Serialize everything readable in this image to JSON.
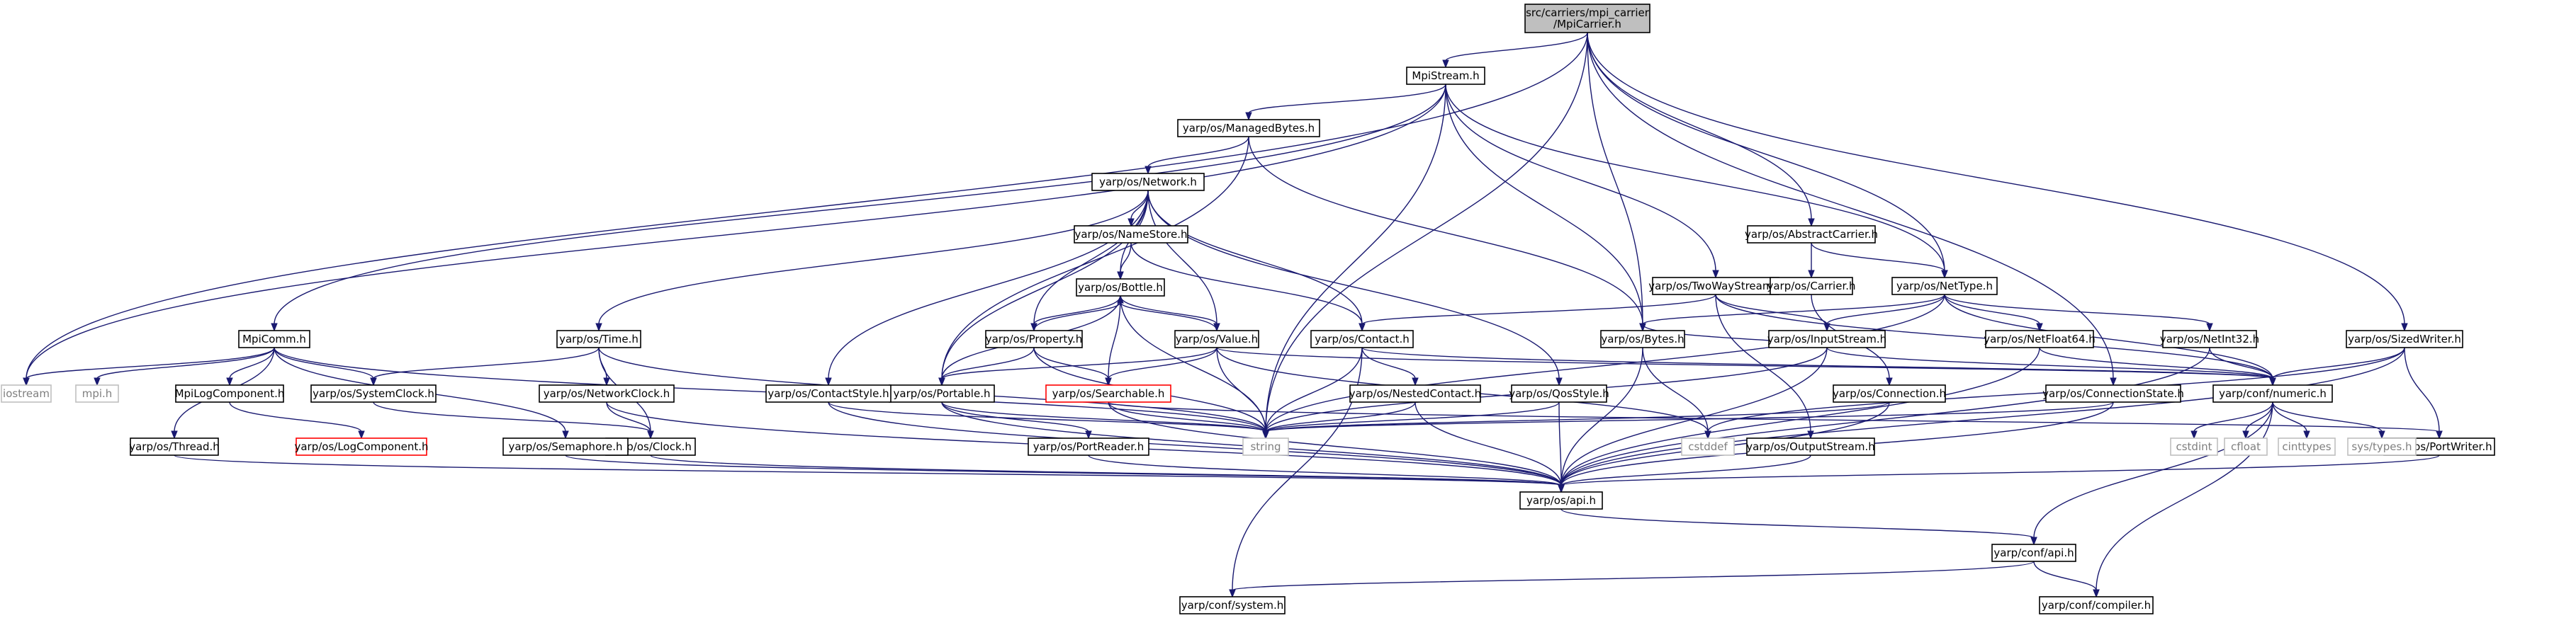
{
  "graph": {
    "nodes": [
      {
        "id": "root",
        "label": "src/carriers/mpi_carrier\n/MpiCarrier.h",
        "style": "root"
      },
      {
        "id": "mpistream",
        "label": "MpiStream.h"
      },
      {
        "id": "managedbytes",
        "label": "yarp/os/ManagedBytes.h"
      },
      {
        "id": "network",
        "label": "yarp/os/Network.h"
      },
      {
        "id": "namestore",
        "label": "yarp/os/NameStore.h"
      },
      {
        "id": "bottle",
        "label": "yarp/os/Bottle.h"
      },
      {
        "id": "property",
        "label": "yarp/os/Property.h"
      },
      {
        "id": "value",
        "label": "yarp/os/Value.h"
      },
      {
        "id": "contact",
        "label": "yarp/os/Contact.h"
      },
      {
        "id": "nestedcontact",
        "label": "yarp/os/NestedContact.h"
      },
      {
        "id": "searchable",
        "label": "yarp/os/Searchable.h",
        "style": "red"
      },
      {
        "id": "portable",
        "label": "yarp/os/Portable.h"
      },
      {
        "id": "portreader",
        "label": "yarp/os/PortReader.h"
      },
      {
        "id": "time",
        "label": "yarp/os/Time.h"
      },
      {
        "id": "networkclock",
        "label": "yarp/os/NetworkClock.h"
      },
      {
        "id": "systemclock",
        "label": "yarp/os/SystemClock.h"
      },
      {
        "id": "clock",
        "label": "yarp/os/Clock.h"
      },
      {
        "id": "semaphore",
        "label": "yarp/os/Semaphore.h"
      },
      {
        "id": "contactstyle",
        "label": "yarp/os/ContactStyle.h"
      },
      {
        "id": "qosstyle",
        "label": "yarp/os/QosStyle.h"
      },
      {
        "id": "mpicomm",
        "label": "MpiComm.h"
      },
      {
        "id": "mpilogcomponent",
        "label": "MpiLogComponent.h"
      },
      {
        "id": "logcomponent",
        "label": "yarp/os/LogComponent.h",
        "style": "red"
      },
      {
        "id": "thread",
        "label": "yarp/os/Thread.h"
      },
      {
        "id": "iostream",
        "label": "iostream",
        "style": "grey"
      },
      {
        "id": "mpih",
        "label": "mpi.h",
        "style": "grey"
      },
      {
        "id": "string",
        "label": "string",
        "style": "grey"
      },
      {
        "id": "cstddef",
        "label": "cstddef",
        "style": "grey"
      },
      {
        "id": "twowaystream",
        "label": "yarp/os/TwoWayStream.h"
      },
      {
        "id": "inputstream",
        "label": "yarp/os/InputStream.h"
      },
      {
        "id": "outputstream",
        "label": "yarp/os/OutputStream.h"
      },
      {
        "id": "bytes",
        "label": "yarp/os/Bytes.h"
      },
      {
        "id": "abstractcarrier",
        "label": "yarp/os/AbstractCarrier.h"
      },
      {
        "id": "carrier",
        "label": "yarp/os/Carrier.h"
      },
      {
        "id": "connection",
        "label": "yarp/os/Connection.h"
      },
      {
        "id": "nettype",
        "label": "yarp/os/NetType.h"
      },
      {
        "id": "netfloat64",
        "label": "yarp/os/NetFloat64.h"
      },
      {
        "id": "netint32",
        "label": "yarp/os/NetInt32.h"
      },
      {
        "id": "connectionstate",
        "label": "yarp/os/ConnectionState.h"
      },
      {
        "id": "sizedwriter",
        "label": "yarp/os/SizedWriter.h"
      },
      {
        "id": "portwriter",
        "label": "yarp/os/PortWriter.h"
      },
      {
        "id": "numeric",
        "label": "yarp/conf/numeric.h"
      },
      {
        "id": "cstdint",
        "label": "cstdint",
        "style": "grey"
      },
      {
        "id": "cfloat",
        "label": "cfloat",
        "style": "grey"
      },
      {
        "id": "cinttypes",
        "label": "cinttypes",
        "style": "grey"
      },
      {
        "id": "systypes",
        "label": "sys/types.h",
        "style": "grey"
      },
      {
        "id": "api",
        "label": "yarp/os/api.h"
      },
      {
        "id": "confapi",
        "label": "yarp/conf/api.h"
      },
      {
        "id": "system",
        "label": "yarp/conf/system.h"
      },
      {
        "id": "compiler",
        "label": "yarp/conf/compiler.h"
      }
    ],
    "edges": [
      [
        "root",
        "mpistream"
      ],
      [
        "root",
        "iostream"
      ],
      [
        "root",
        "string"
      ],
      [
        "root",
        "bytes"
      ],
      [
        "root",
        "abstractcarrier"
      ],
      [
        "root",
        "nettype"
      ],
      [
        "root",
        "connectionstate"
      ],
      [
        "root",
        "sizedwriter"
      ],
      [
        "mpistream",
        "managedbytes"
      ],
      [
        "mpistream",
        "mpicomm"
      ],
      [
        "mpistream",
        "iostream"
      ],
      [
        "mpistream",
        "string"
      ],
      [
        "mpistream",
        "bytes"
      ],
      [
        "mpistream",
        "twowaystream"
      ],
      [
        "mpistream",
        "nettype"
      ],
      [
        "managedbytes",
        "network"
      ],
      [
        "managedbytes",
        "bytes"
      ],
      [
        "managedbytes",
        "portable"
      ],
      [
        "network",
        "namestore"
      ],
      [
        "network",
        "bottle"
      ],
      [
        "network",
        "property"
      ],
      [
        "network",
        "value"
      ],
      [
        "network",
        "contact"
      ],
      [
        "network",
        "time"
      ],
      [
        "network",
        "contactstyle"
      ],
      [
        "network",
        "qosstyle"
      ],
      [
        "network",
        "portable"
      ],
      [
        "namestore",
        "bottle"
      ],
      [
        "namestore",
        "contact"
      ],
      [
        "bottle",
        "property"
      ],
      [
        "bottle",
        "value"
      ],
      [
        "bottle",
        "searchable"
      ],
      [
        "bottle",
        "portable"
      ],
      [
        "bottle",
        "string"
      ],
      [
        "property",
        "bottle"
      ],
      [
        "property",
        "searchable"
      ],
      [
        "property",
        "portable"
      ],
      [
        "property",
        "string"
      ],
      [
        "value",
        "bottle"
      ],
      [
        "value",
        "searchable"
      ],
      [
        "value",
        "portable"
      ],
      [
        "value",
        "string"
      ],
      [
        "value",
        "cstddef"
      ],
      [
        "value",
        "numeric"
      ],
      [
        "contact",
        "nestedcontact"
      ],
      [
        "contact",
        "string"
      ],
      [
        "contact",
        "numeric"
      ],
      [
        "contact",
        "system"
      ],
      [
        "nestedcontact",
        "string"
      ],
      [
        "nestedcontact",
        "api"
      ],
      [
        "searchable",
        "string"
      ],
      [
        "searchable",
        "api"
      ],
      [
        "searchable",
        "portwriter"
      ],
      [
        "portable",
        "portreader"
      ],
      [
        "portable",
        "api"
      ],
      [
        "portable",
        "string"
      ],
      [
        "portreader",
        "api"
      ],
      [
        "time",
        "networkclock"
      ],
      [
        "time",
        "systemclock"
      ],
      [
        "time",
        "clock"
      ],
      [
        "time",
        "string"
      ],
      [
        "networkclock",
        "clock"
      ],
      [
        "networkclock",
        "api"
      ],
      [
        "systemclock",
        "clock"
      ],
      [
        "clock",
        "api"
      ],
      [
        "semaphore",
        "api"
      ],
      [
        "contactstyle",
        "string"
      ],
      [
        "contactstyle",
        "api"
      ],
      [
        "qosstyle",
        "string"
      ],
      [
        "qosstyle",
        "api"
      ],
      [
        "mpicomm",
        "iostream"
      ],
      [
        "mpicomm",
        "mpih"
      ],
      [
        "mpicomm",
        "mpilogcomponent"
      ],
      [
        "mpicomm",
        "thread"
      ],
      [
        "mpicomm",
        "systemclock"
      ],
      [
        "mpicomm",
        "semaphore"
      ],
      [
        "mpicomm",
        "string"
      ],
      [
        "mpilogcomponent",
        "logcomponent"
      ],
      [
        "thread",
        "api"
      ],
      [
        "twowaystream",
        "contact"
      ],
      [
        "twowaystream",
        "inputstream"
      ],
      [
        "twowaystream",
        "outputstream"
      ],
      [
        "twowaystream",
        "numeric"
      ],
      [
        "inputstream",
        "bytes"
      ],
      [
        "inputstream",
        "string"
      ],
      [
        "inputstream",
        "api"
      ],
      [
        "inputstream",
        "numeric"
      ],
      [
        "outputstream",
        "api"
      ],
      [
        "bytes",
        "cstddef"
      ],
      [
        "bytes",
        "api"
      ],
      [
        "abstractcarrier",
        "carrier"
      ],
      [
        "abstractcarrier",
        "nettype"
      ],
      [
        "carrier",
        "connection"
      ],
      [
        "connection",
        "string"
      ],
      [
        "connection",
        "api"
      ],
      [
        "nettype",
        "bytes"
      ],
      [
        "nettype",
        "inputstream"
      ],
      [
        "nettype",
        "netfloat64"
      ],
      [
        "nettype",
        "netint32"
      ],
      [
        "nettype",
        "string"
      ],
      [
        "nettype",
        "numeric"
      ],
      [
        "netfloat64",
        "api"
      ],
      [
        "netfloat64",
        "numeric"
      ],
      [
        "netint32",
        "api"
      ],
      [
        "netint32",
        "numeric"
      ],
      [
        "connectionstate",
        "string"
      ],
      [
        "connectionstate",
        "api"
      ],
      [
        "sizedwriter",
        "portwriter"
      ],
      [
        "sizedwriter",
        "numeric"
      ],
      [
        "sizedwriter",
        "api"
      ],
      [
        "sizedwriter",
        "cstddef"
      ],
      [
        "portwriter",
        "api"
      ],
      [
        "numeric",
        "cstdint"
      ],
      [
        "numeric",
        "cfloat"
      ],
      [
        "numeric",
        "cinttypes"
      ],
      [
        "numeric",
        "systypes"
      ],
      [
        "numeric",
        "confapi"
      ],
      [
        "numeric",
        "compiler"
      ],
      [
        "api",
        "confapi"
      ],
      [
        "confapi",
        "system"
      ],
      [
        "confapi",
        "compiler"
      ]
    ]
  }
}
